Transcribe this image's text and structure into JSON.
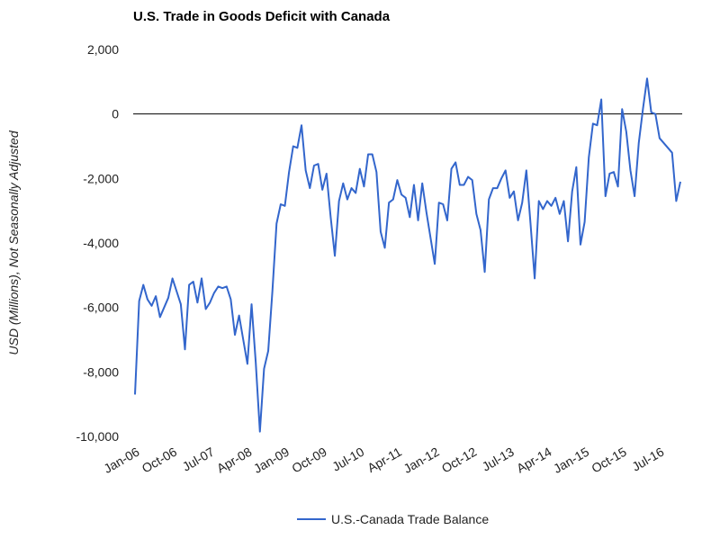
{
  "chart_data": {
    "type": "line",
    "title": "U.S. Trade in Goods Deficit with Canada",
    "xlabel": "",
    "ylabel": "USD (Millions), Not Seasonally Adjusted",
    "ylim": [
      -10000,
      2000
    ],
    "y_ticks": [
      "2,000",
      "0",
      "-2,000",
      "-4,000",
      "-6,000",
      "-8,000",
      "-10,000"
    ],
    "y_tick_values": [
      2000,
      0,
      -2000,
      -4000,
      -6000,
      -8000,
      -10000
    ],
    "x_tick_labels": [
      "Jan-06",
      "Oct-06",
      "Jul-07",
      "Apr-08",
      "Jan-09",
      "Oct-09",
      "Jul-10",
      "Apr-11",
      "Jan-12",
      "Oct-12",
      "Jul-13",
      "Apr-14",
      "Jan-15",
      "Oct-15",
      "Jul-16"
    ],
    "x_start": "Jan-06",
    "x_end": "Jan-17",
    "zero_line": true,
    "grid": false,
    "legend_position": "bottom",
    "colors": {
      "series": "#3366cc",
      "zero_line": "#000000"
    },
    "series": [
      {
        "name": "U.S.-Canada Trade Balance",
        "values": [
          -8700,
          -5800,
          -5300,
          -5750,
          -5950,
          -5650,
          -6300,
          -6000,
          -5700,
          -5100,
          -5500,
          -5900,
          -7300,
          -5300,
          -5200,
          -5850,
          -5100,
          -6050,
          -5850,
          -5550,
          -5350,
          -5400,
          -5350,
          -5750,
          -6850,
          -6250,
          -7000,
          -7750,
          -5900,
          -7700,
          -9850,
          -7900,
          -7350,
          -5500,
          -3400,
          -2800,
          -2850,
          -1800,
          -1000,
          -1050,
          -350,
          -1750,
          -2300,
          -1600,
          -1550,
          -2350,
          -1850,
          -3200,
          -4400,
          -2700,
          -2150,
          -2650,
          -2300,
          -2450,
          -1700,
          -2250,
          -1250,
          -1250,
          -1800,
          -3650,
          -4150,
          -2750,
          -2650,
          -2050,
          -2500,
          -2600,
          -3200,
          -2200,
          -3300,
          -2150,
          -3050,
          -3850,
          -4650,
          -2750,
          -2800,
          -3300,
          -1700,
          -1500,
          -2200,
          -2200,
          -1950,
          -2050,
          -3100,
          -3600,
          -4900,
          -2650,
          -2300,
          -2300,
          -2000,
          -1750,
          -2600,
          -2400,
          -3300,
          -2750,
          -1750,
          -3400,
          -5100,
          -2700,
          -2950,
          -2700,
          -2850,
          -2600,
          -3100,
          -2700,
          -3950,
          -2400,
          -1650,
          -4050,
          -3350,
          -1350,
          -300,
          -350,
          450,
          -2550,
          -1850,
          -1800,
          -2250,
          150,
          -550,
          -1750,
          -2550,
          -900,
          150,
          1100,
          50,
          0,
          -750,
          -900,
          -1050,
          -1200,
          -2700,
          -2100
        ]
      }
    ]
  }
}
